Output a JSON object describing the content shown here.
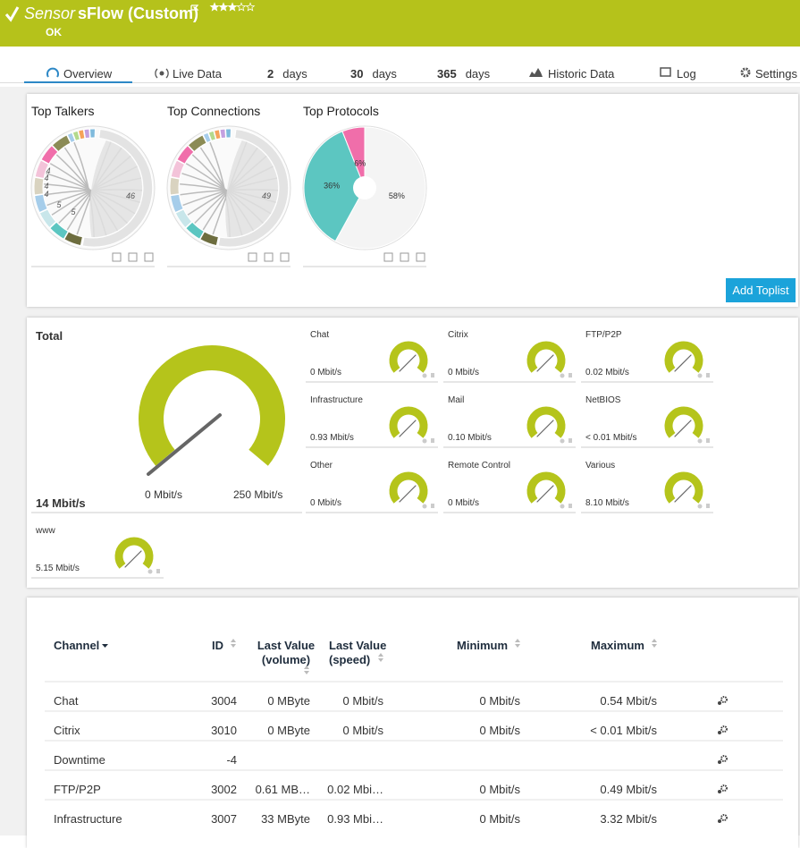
{
  "header": {
    "prefix": "Sensor",
    "title": "sFlow (Custom)",
    "status": "OK"
  },
  "tabs": [
    {
      "label": "Overview"
    },
    {
      "label": "Live Data"
    },
    {
      "number": "2",
      "label": "days"
    },
    {
      "number": "30",
      "label": "days"
    },
    {
      "number": "365",
      "label": "days"
    },
    {
      "label": "Historic Data"
    },
    {
      "label": "Log"
    },
    {
      "label": "Settings"
    }
  ],
  "toplists": {
    "titles": [
      "Top Talkers",
      "Top Connections",
      "Top Protocols"
    ],
    "talkers_labels": [
      "46",
      "4",
      "4",
      "4",
      "4",
      "5",
      "5"
    ],
    "connections_labels": [
      "49"
    ],
    "protocols": {
      "values": [
        58,
        36,
        6
      ],
      "value_labels": [
        "58%",
        "36%",
        "6%"
      ],
      "colors": [
        "#f4f4f4",
        "#5cc6c1",
        "#f06eaa"
      ]
    },
    "button": "Add Toplist"
  },
  "gauges": {
    "total": {
      "name": "Total",
      "value": "14 Mbit/s",
      "min": "0 Mbit/s",
      "max": "250 Mbit/s"
    },
    "channels": [
      {
        "name": "Chat",
        "value": "0 Mbit/s"
      },
      {
        "name": "Citrix",
        "value": "0 Mbit/s"
      },
      {
        "name": "FTP/P2P",
        "value": "0.02 Mbit/s"
      },
      {
        "name": "Infrastructure",
        "value": "0.93 Mbit/s"
      },
      {
        "name": "Mail",
        "value": "0.10 Mbit/s"
      },
      {
        "name": "NetBIOS",
        "value": "< 0.01 Mbit/s"
      },
      {
        "name": "Other",
        "value": "0 Mbit/s"
      },
      {
        "name": "Remote Control",
        "value": "0 Mbit/s"
      },
      {
        "name": "Various",
        "value": "8.10 Mbit/s"
      }
    ],
    "extra": {
      "name": "www",
      "value": "5.15 Mbit/s"
    }
  },
  "table": {
    "columns": [
      "Channel",
      "ID",
      "Last Value (volume)",
      "Last Value (speed)",
      "Minimum",
      "Maximum"
    ],
    "rows": [
      [
        "Chat",
        "3004",
        "0 MByte",
        "0 Mbit/s",
        "0 Mbit/s",
        "0.54 Mbit/s"
      ],
      [
        "Citrix",
        "3010",
        "0 MByte",
        "0 Mbit/s",
        "0 Mbit/s",
        "< 0.01 Mbit/s"
      ],
      [
        "Downtime",
        "-4"
      ],
      [
        "FTP/P2P",
        "3002",
        "0.61 MB…",
        "0.02 Mbi…",
        "0 Mbit/s",
        "0.49 Mbit/s"
      ],
      [
        "Infrastructure",
        "3007",
        "33 MByte",
        "0.93 Mbi…",
        "0 Mbit/s",
        "3.32 Mbit/s"
      ]
    ]
  }
}
